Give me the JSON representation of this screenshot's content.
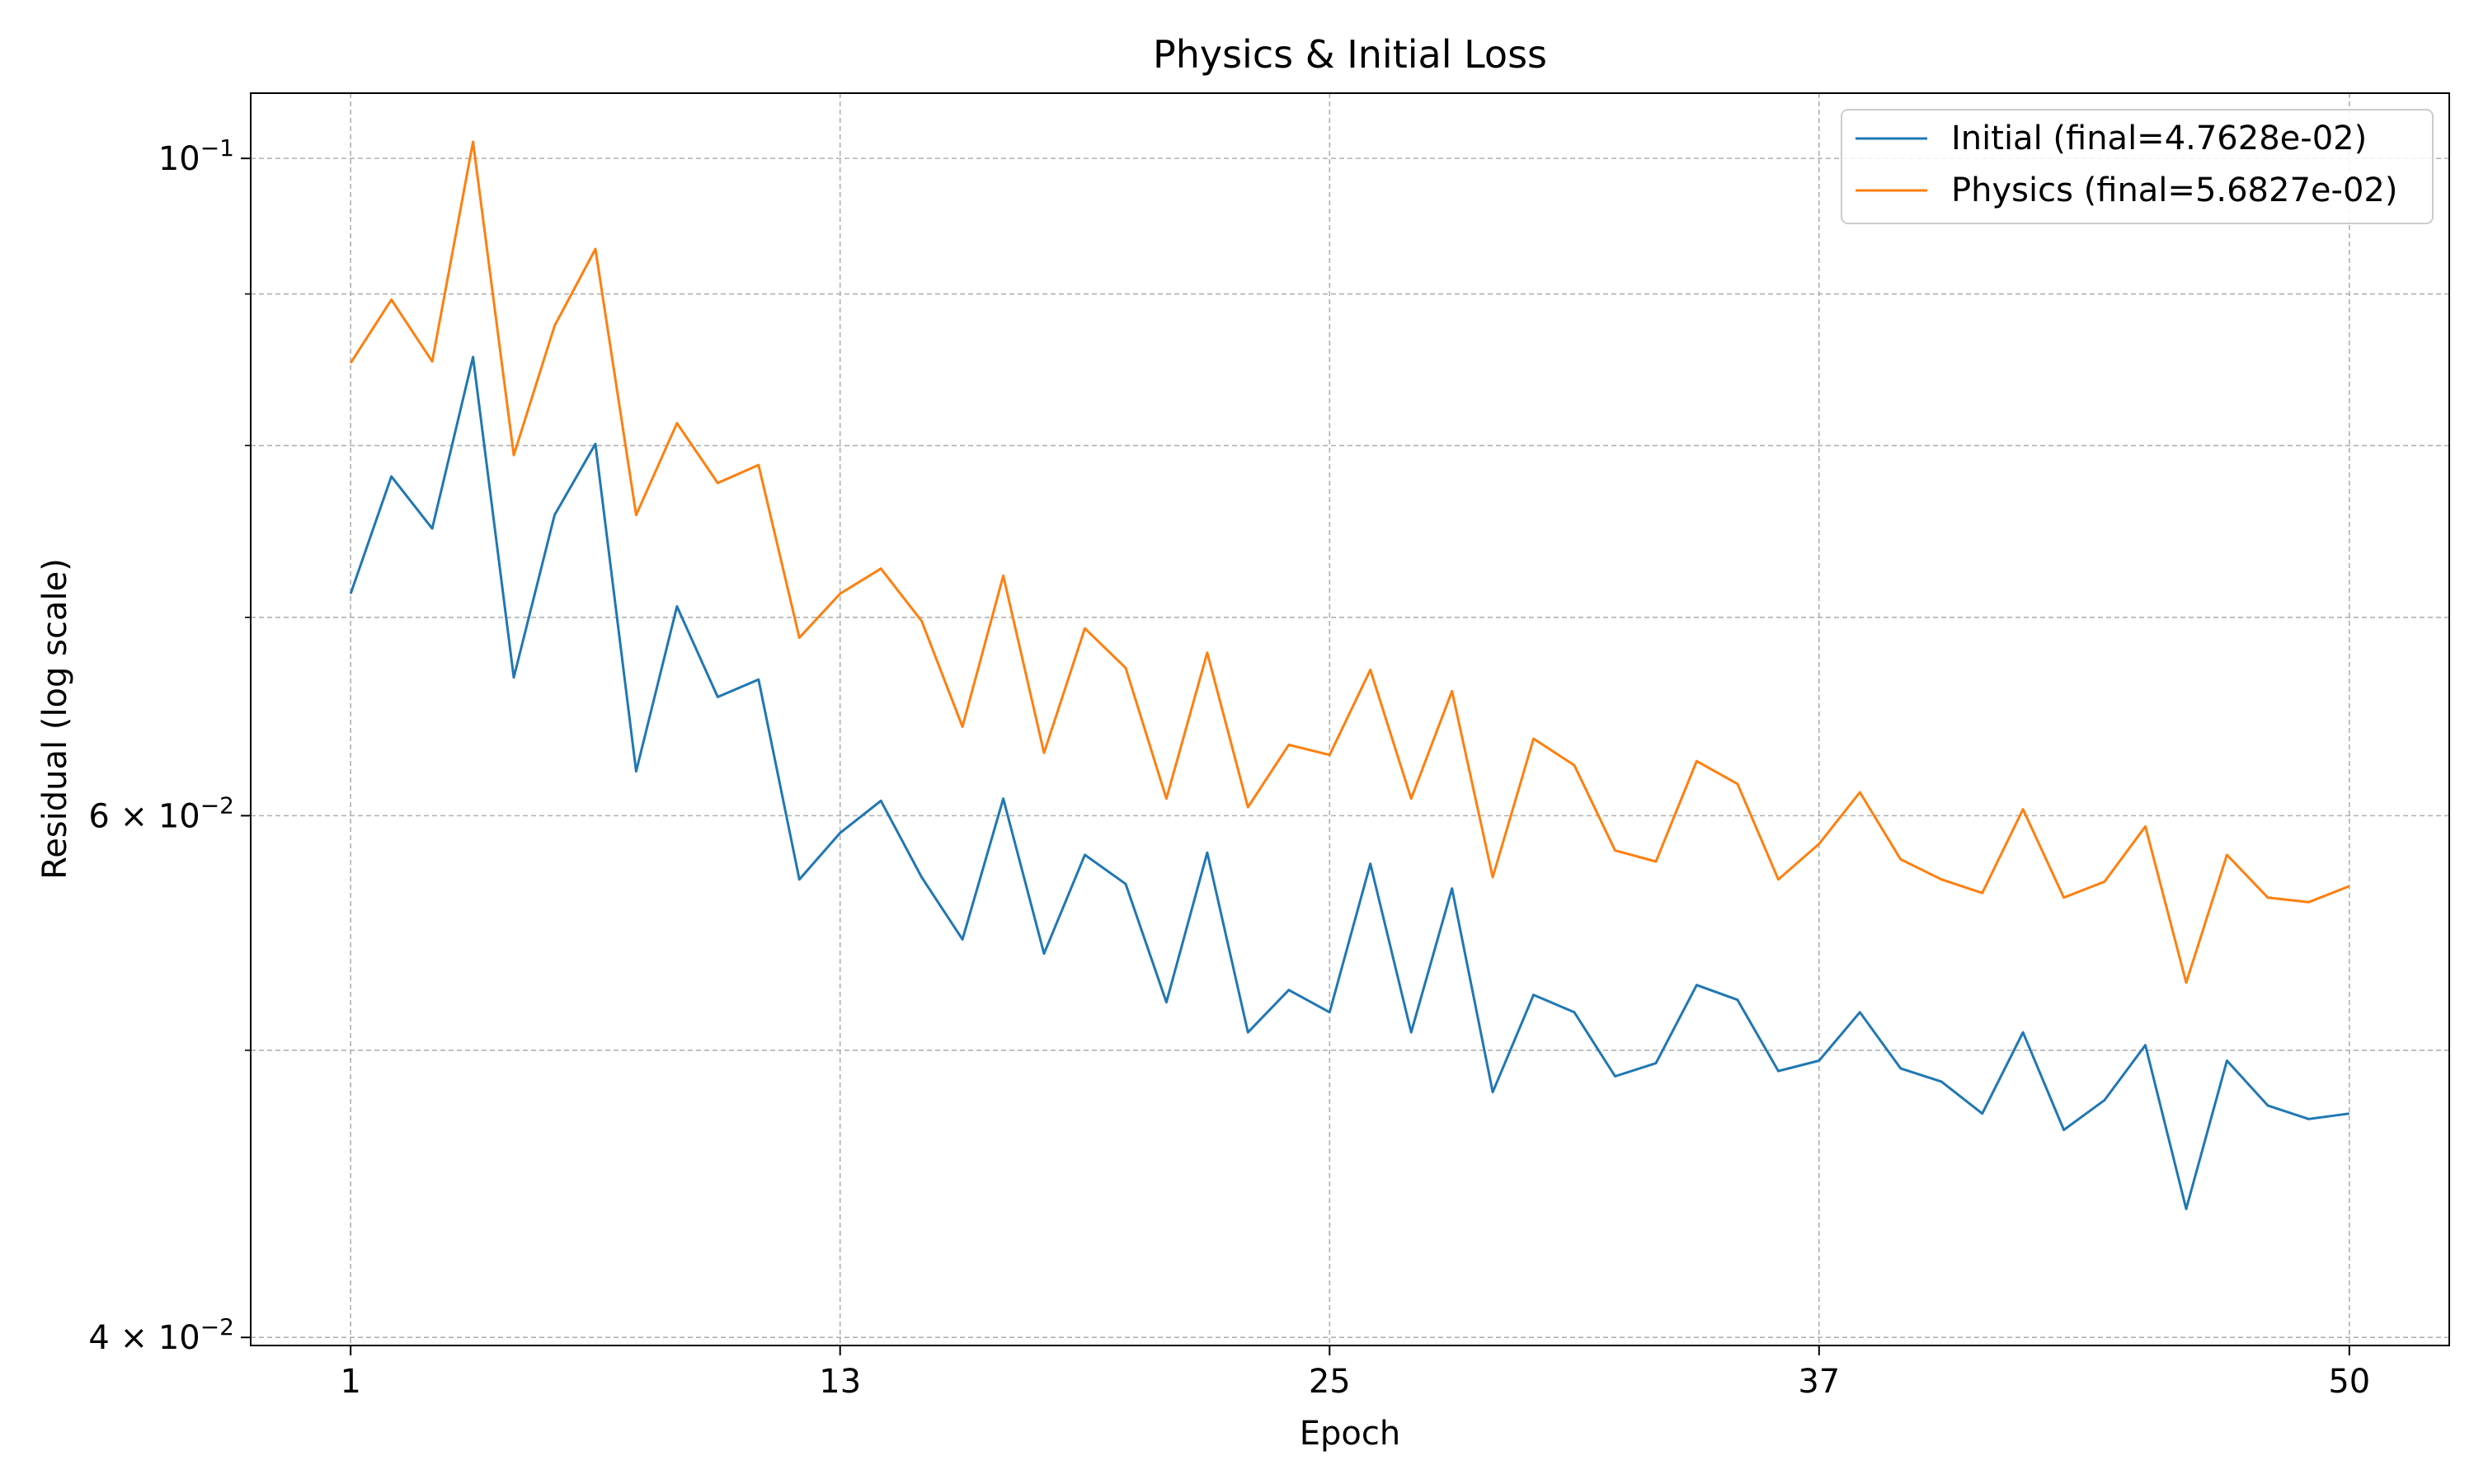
{
  "chart_data": {
    "type": "line",
    "title": "Physics & Initial Loss",
    "xlabel": "Epoch",
    "ylabel": "Residual (log scale)",
    "yscale": "log",
    "xlim": [
      -1.45,
      52.45
    ],
    "ylim": [
      0.03975,
      0.1052
    ],
    "xticks": [
      1,
      13,
      25,
      37,
      50
    ],
    "xtick_labels": [
      "1",
      "13",
      "25",
      "37",
      "50"
    ],
    "yticks_major": [
      0.04,
      0.06,
      0.1
    ],
    "yticks_major_labels": [
      {
        "mant": "4",
        "times": "×",
        "base": "10",
        "exp": "−2"
      },
      {
        "mant": "6",
        "times": "×",
        "base": "10",
        "exp": "−2"
      },
      {
        "mant": "",
        "times": "",
        "base": "10",
        "exp": "−1"
      }
    ],
    "yticks_minor": [
      0.05,
      0.07,
      0.08,
      0.09
    ],
    "grid": true,
    "legend_position": "top-right",
    "x": [
      1,
      2,
      3,
      4,
      5,
      6,
      7,
      8,
      9,
      10,
      11,
      12,
      13,
      14,
      15,
      16,
      17,
      18,
      19,
      20,
      21,
      22,
      23,
      24,
      25,
      26,
      27,
      28,
      29,
      30,
      31,
      32,
      33,
      34,
      35,
      36,
      37,
      38,
      39,
      40,
      41,
      42,
      43,
      44,
      45,
      46,
      47,
      48,
      49,
      50
    ],
    "series": [
      {
        "name": "Initial (final=4.7628e-02)",
        "color": "#1f77b4",
        "values": [
          0.0713,
          0.0781,
          0.075,
          0.0857,
          0.0668,
          0.0758,
          0.0801,
          0.0621,
          0.0706,
          0.0658,
          0.0667,
          0.0571,
          0.0592,
          0.0607,
          0.0572,
          0.0545,
          0.0608,
          0.0539,
          0.0582,
          0.0569,
          0.0519,
          0.0583,
          0.0507,
          0.0524,
          0.0515,
          0.0578,
          0.0507,
          0.0567,
          0.0484,
          0.0522,
          0.0515,
          0.049,
          0.0495,
          0.0526,
          0.052,
          0.0492,
          0.0496,
          0.0515,
          0.0493,
          0.0488,
          0.0476,
          0.0507,
          0.047,
          0.0481,
          0.0502,
          0.0442,
          0.0496,
          0.0479,
          0.0474,
          0.0476
        ]
      },
      {
        "name": "Physics (final=5.6827e-02)",
        "color": "#ff7f0e",
        "values": [
          0.0853,
          0.0896,
          0.0854,
          0.1013,
          0.0794,
          0.0878,
          0.0932,
          0.0758,
          0.0814,
          0.0777,
          0.0788,
          0.0689,
          0.0713,
          0.0727,
          0.0698,
          0.0643,
          0.0723,
          0.063,
          0.0694,
          0.0673,
          0.0608,
          0.0681,
          0.0604,
          0.0634,
          0.0629,
          0.0672,
          0.0608,
          0.0661,
          0.0572,
          0.0637,
          0.0624,
          0.0584,
          0.0579,
          0.0626,
          0.0615,
          0.0571,
          0.0587,
          0.0611,
          0.058,
          0.0571,
          0.0565,
          0.0603,
          0.0563,
          0.057,
          0.0595,
          0.0527,
          0.0582,
          0.0563,
          0.0561,
          0.0568
        ]
      }
    ]
  }
}
